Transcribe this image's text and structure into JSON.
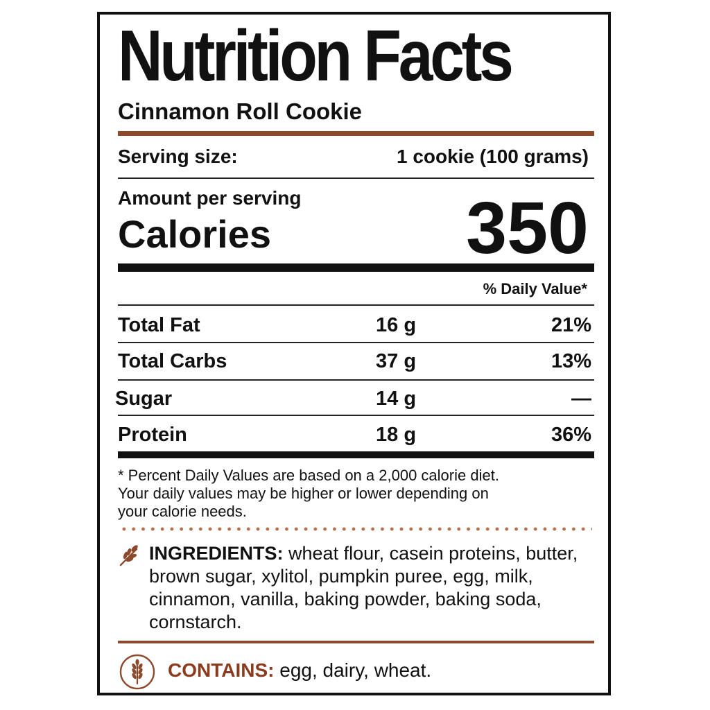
{
  "title": "Nutrition Facts",
  "product": "Cinnamon Roll Cookie",
  "serving": {
    "label": "Serving size:",
    "value": "1 cookie (100 grams)"
  },
  "amount_per_serving": "Amount per serving",
  "calories": {
    "label": "Calories",
    "value": "350"
  },
  "daily_value_header": "% Daily Value*",
  "nutrients": [
    {
      "name": "Total Fat",
      "amount": "16 g",
      "dv": "21%"
    },
    {
      "name": "Total Carbs",
      "amount": "37 g",
      "dv": "13%"
    },
    {
      "name": "Sugar",
      "amount": "14 g",
      "dv": "—"
    },
    {
      "name": "Protein",
      "amount": "18 g",
      "dv": "36%"
    }
  ],
  "footnote": {
    "line1": "* Percent Daily Values are based on a 2,000 calorie diet.",
    "line2": "Your daily values may be higher or lower depending on",
    "line3": "your calorie needs."
  },
  "ingredients": {
    "label": "INGREDIENTS:",
    "text": " wheat flour, casein proteins, butter, brown sugar, xylitol, pumpkin puree, egg, milk, cinnamon, vanilla, baking powder, baking soda, cornstarch."
  },
  "contains": {
    "label": "CONTAINS:",
    "text": " egg, dairy, wheat."
  },
  "colors": {
    "accent": "#8b4a2c",
    "contains_label": "#8b3c1e",
    "text": "#111111"
  },
  "icons": {
    "ingredients": "wheat-icon",
    "contains": "wheat-circle-icon"
  }
}
